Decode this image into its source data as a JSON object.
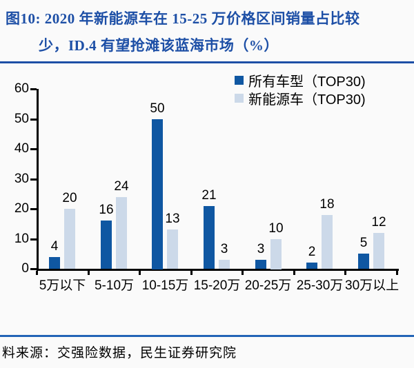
{
  "title": {
    "line1": "图10: 2020 年新能源车在 15-25 万价格区间销量占比较",
    "line2": "少，ID.4 有望抢滩该蓝海市场（%）"
  },
  "source": "料来源：交强险数据，民生证券研究院",
  "colors": {
    "title_blue": "#1d4fa6",
    "top_rule": "#1d4fa6",
    "bottom_rule": "#2264b6",
    "axis_black": "#000000",
    "series_all_models": "#0f57a2",
    "series_nev": "#ccd9e9"
  },
  "chart_data": {
    "type": "bar",
    "categories": [
      "5万以下",
      "5-10万",
      "10-15万",
      "15-20万",
      "20-25万",
      "25-30万",
      "30万以上"
    ],
    "series": [
      {
        "name": "所有车型（TOP30)",
        "color": "#0f57a2",
        "values": [
          4,
          16,
          50,
          21,
          3,
          2,
          5
        ]
      },
      {
        "name": "新能源车（TOP30)",
        "color": "#ccd9e9",
        "values": [
          20,
          24,
          13,
          3,
          10,
          18,
          12
        ]
      }
    ],
    "ylim": [
      0,
      60
    ],
    "yticks": [
      0,
      10,
      20,
      30,
      40,
      50,
      60
    ],
    "grid": false,
    "data_labels": true,
    "legend_position": "top-right"
  }
}
